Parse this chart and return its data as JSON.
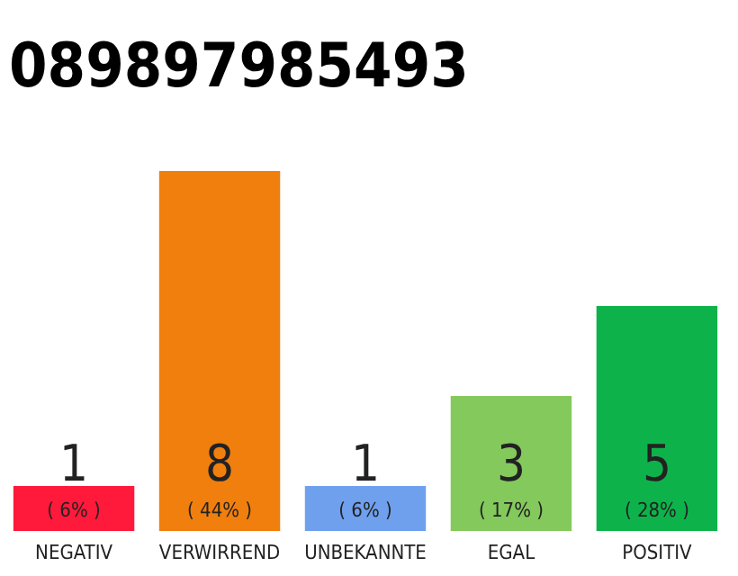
{
  "chart_data": {
    "type": "bar",
    "title": "089897985493",
    "categories": [
      "NEGATIV",
      "VERWIRREND",
      "UNBEKANNTE",
      "EGAL",
      "POSITIV"
    ],
    "values": [
      1,
      8,
      1,
      3,
      5
    ],
    "colors": [
      "#ff1a3c",
      "#f07f0e",
      "#6fa0ee",
      "#84c95c",
      "#0db34a"
    ],
    "data_labels": true,
    "annotations": [
      "( 6% )",
      "( 44% )",
      "( 6% )",
      "( 17% )",
      "( 28% )"
    ],
    "tick_labels": "x"
  }
}
